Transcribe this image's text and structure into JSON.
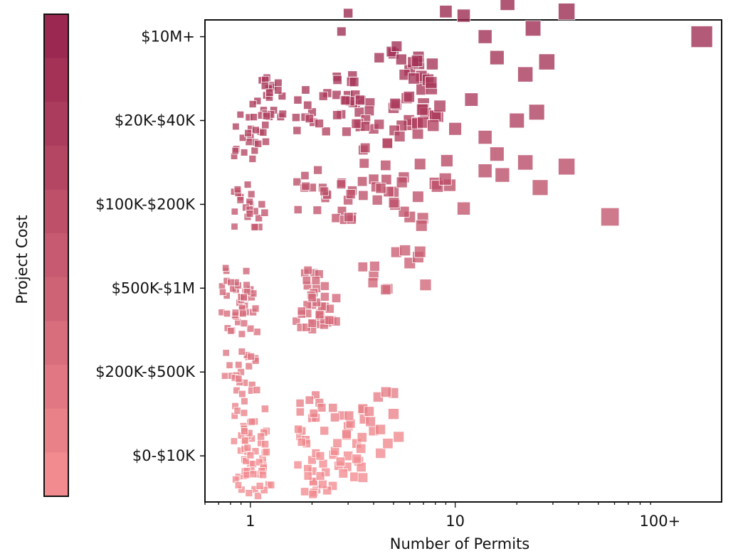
{
  "chart_data": {
    "type": "scatter",
    "title": "",
    "xlabel": "Number of Permits",
    "ylabel": "",
    "xscale": "log",
    "xlim": [
      0.6,
      200
    ],
    "x_ticks": [
      {
        "value": 1,
        "label": "1"
      },
      {
        "value": 10,
        "label": "10"
      },
      {
        "value": 100,
        "label": "100+"
      }
    ],
    "y_categories": [
      "$0-$10K",
      "$200K-$500K",
      "$500K-$1M",
      "$100K-$200K",
      "$20K-$40K",
      "$10M+"
    ],
    "ylim": [
      -0.55,
      5.2
    ],
    "marker": "square, size proportional to number of permits",
    "color_scale": {
      "label": "Project Cost",
      "low_color": "#f28b8f",
      "high_color": "#9b2850",
      "steps": 11
    },
    "opacity": 0.78,
    "clusters": [
      {
        "category": "$10M+",
        "points": [
          [
            3,
            5.28
          ],
          [
            5,
            4.8
          ],
          [
            6,
            4.6
          ],
          [
            7,
            4.5
          ],
          [
            9,
            5.3
          ],
          [
            11,
            5.25
          ],
          [
            14,
            5.0
          ],
          [
            16,
            4.75
          ],
          [
            18,
            5.4
          ],
          [
            22,
            4.55
          ],
          [
            24,
            5.1
          ],
          [
            28,
            4.7
          ],
          [
            35,
            5.3
          ],
          [
            160,
            5.0
          ],
          [
            1.2,
            4.3
          ]
        ]
      },
      {
        "category": "$20K-$40K",
        "points": [
          [
            2,
            4.1
          ],
          [
            3,
            4.3
          ],
          [
            3.4,
            4.1
          ],
          [
            4,
            3.9
          ],
          [
            5,
            4.15
          ],
          [
            6,
            3.95
          ],
          [
            7,
            4.2
          ],
          [
            8,
            4.05
          ],
          [
            10,
            3.9
          ],
          [
            12,
            4.25
          ],
          [
            14,
            3.8
          ],
          [
            16,
            3.6
          ],
          [
            20,
            4.0
          ],
          [
            25,
            4.1
          ],
          [
            1,
            3.8
          ]
        ]
      },
      {
        "category": "$100K-$200K",
        "points": [
          [
            1,
            3.0
          ],
          [
            2,
            3.2
          ],
          [
            3,
            3.05
          ],
          [
            4,
            3.3
          ],
          [
            5,
            3.15
          ],
          [
            6,
            2.85
          ],
          [
            8,
            3.25
          ],
          [
            11,
            2.95
          ],
          [
            14,
            3.4
          ],
          [
            17,
            3.35
          ],
          [
            22,
            3.5
          ],
          [
            26,
            3.2
          ],
          [
            35,
            3.45
          ],
          [
            57,
            2.85
          ],
          [
            6,
            2.3
          ],
          [
            4,
            2.15
          ]
        ]
      },
      {
        "category": "$500K-$1M",
        "points": [
          [
            0.85,
            1.98
          ],
          [
            0.9,
            1.7
          ],
          [
            2.1,
            2.0
          ],
          [
            1.9,
            1.7
          ],
          [
            2.2,
            1.7
          ]
        ]
      },
      {
        "category": "$200K-$500K",
        "points": [
          [
            0.9,
            1.0
          ]
        ]
      },
      {
        "category": "$0-$10K",
        "points": [
          [
            1,
            0.4
          ],
          [
            2,
            0.45
          ],
          [
            3,
            0.35
          ],
          [
            4,
            0.3
          ],
          [
            5,
            0.5
          ],
          [
            1,
            -0.1
          ],
          [
            2,
            -0.05
          ],
          [
            3,
            0.0
          ],
          [
            1.05,
            -0.4
          ],
          [
            2.1,
            -0.4
          ]
        ]
      }
    ]
  }
}
